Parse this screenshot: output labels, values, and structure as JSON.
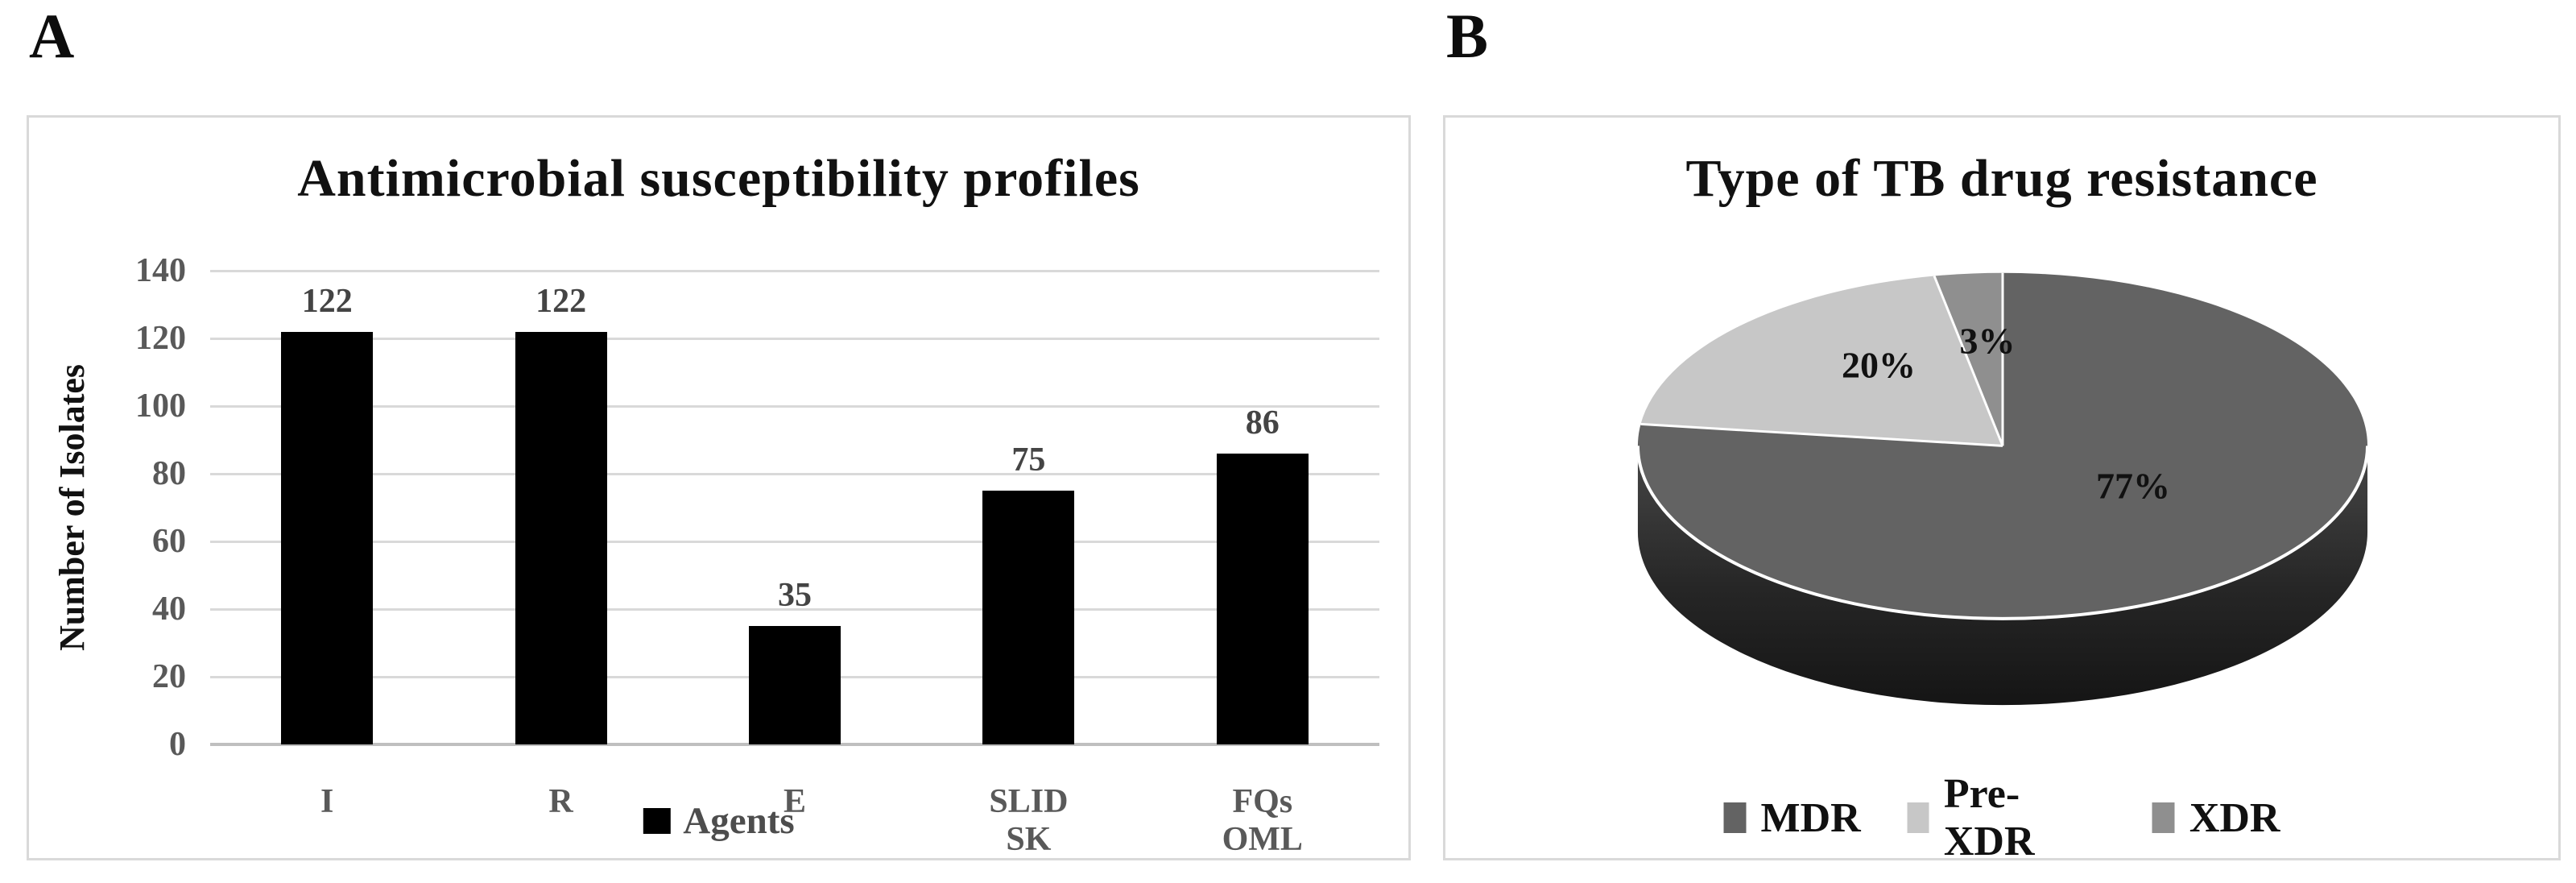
{
  "panels": {
    "a": {
      "label": "A"
    },
    "b": {
      "label": "B"
    }
  },
  "chart_data": [
    {
      "type": "bar",
      "panel": "A",
      "title": "Antimicrobial susceptibility profiles",
      "xlabel": "",
      "ylabel": "Number of Isolates",
      "categories": [
        "I",
        "R",
        "E",
        "SLID SK",
        "FQs OML"
      ],
      "category_lines": [
        [
          "I"
        ],
        [
          "R"
        ],
        [
          "E"
        ],
        [
          "SLID",
          "SK"
        ],
        [
          "FQs",
          "OML"
        ]
      ],
      "values": [
        122,
        122,
        35,
        75,
        86
      ],
      "value_labels": [
        "122",
        "122",
        "35",
        "75",
        "86"
      ],
      "yticks": [
        0,
        20,
        40,
        60,
        80,
        100,
        120,
        140
      ],
      "ylim": [
        0,
        140
      ],
      "grid": "horizontal",
      "legend": {
        "position": "bottom",
        "entries": [
          {
            "label": "Agents",
            "color": "#000000"
          }
        ]
      },
      "bar_color": "#000000",
      "gridline_color": "#d9d9d9",
      "tick_label_color": "#595959",
      "value_label_color": "#444444"
    },
    {
      "type": "pie",
      "panel": "B",
      "title": "Type of TB drug resistance",
      "style": "3d",
      "start_angle_deg": 0,
      "direction": "clockwise",
      "legend_position": "bottom",
      "slices": [
        {
          "label": "MDR",
          "value_pct": 77,
          "pct_label": "77%",
          "color": "#636363"
        },
        {
          "label": "Pre-XDR",
          "value_pct": 20,
          "pct_label": "20%",
          "color": "#c7c7c7"
        },
        {
          "label": "XDR",
          "value_pct": 3,
          "pct_label": "3%",
          "color": "#8f8f8f"
        }
      ]
    }
  ]
}
